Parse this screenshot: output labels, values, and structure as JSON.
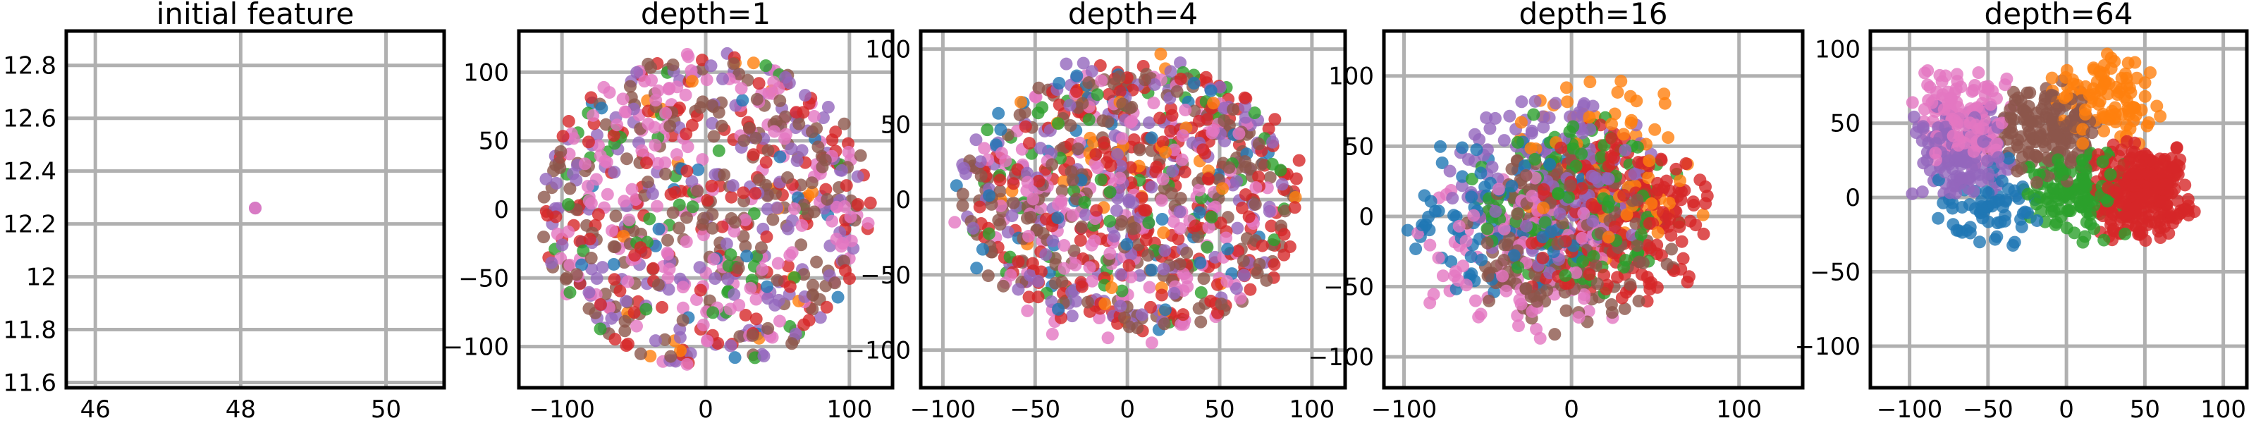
{
  "palette": [
    "#1f77b4",
    "#ff7f0e",
    "#2ca02c",
    "#d62728",
    "#9467bd",
    "#8c564b",
    "#e377c2"
  ],
  "chart_data": [
    {
      "type": "scatter",
      "title": "initial feature",
      "xlim": [
        45.6,
        50.8
      ],
      "ylim": [
        11.58,
        12.93
      ],
      "xticks": [
        46,
        48,
        50
      ],
      "yticks": [
        11.6,
        11.8,
        12.0,
        12.2,
        12.4,
        12.6,
        12.8
      ],
      "grid": true,
      "description": "all points collapse to a single location",
      "points": [
        {
          "x": 48.2,
          "y": 12.26,
          "class": 4
        },
        {
          "x": 48.2,
          "y": 12.26,
          "class": 6
        }
      ]
    },
    {
      "type": "scatter",
      "title": "depth=1",
      "xlim": [
        -130,
        130
      ],
      "ylim": [
        -130,
        130
      ],
      "xticks": [
        -100,
        0,
        100
      ],
      "yticks": [
        -100,
        -50,
        0,
        50,
        100
      ],
      "grid": true,
      "spread": 115,
      "mixing": 1.0,
      "weights": [
        0.03,
        0.03,
        0.06,
        0.17,
        0.2,
        0.28,
        0.23
      ],
      "count": 750
    },
    {
      "type": "scatter",
      "title": "depth=4",
      "xlim": [
        -112,
        118
      ],
      "ylim": [
        -125,
        112
      ],
      "xticks": [
        -100,
        -50,
        0,
        50,
        100
      ],
      "yticks": [
        -100,
        -50,
        0,
        50,
        100
      ],
      "grid": true,
      "spread": 100,
      "mixing": 0.9,
      "weights": [
        0.05,
        0.04,
        0.08,
        0.25,
        0.18,
        0.23,
        0.17
      ],
      "count": 950
    },
    {
      "type": "scatter",
      "title": "depth=16",
      "xlim": [
        -112,
        138
      ],
      "ylim": [
        -122,
        132
      ],
      "xticks": [
        -100,
        0,
        100
      ],
      "yticks": [
        -100,
        -50,
        0,
        50,
        100
      ],
      "grid": true,
      "spread": 105,
      "mixing": 0.55,
      "weights": [
        0.09,
        0.06,
        0.13,
        0.26,
        0.18,
        0.17,
        0.11
      ],
      "count": 1000
    },
    {
      "type": "scatter",
      "title": "depth=64",
      "xlim": [
        -125,
        115
      ],
      "ylim": [
        -128,
        112
      ],
      "xticks": [
        -100,
        -50,
        0,
        50,
        100
      ],
      "yticks": [
        -100,
        -50,
        0,
        50,
        100
      ],
      "grid": true,
      "spread": 105,
      "mixing": 0.15,
      "weights": [
        0.07,
        0.1,
        0.14,
        0.27,
        0.14,
        0.15,
        0.13
      ],
      "count": 1000
    }
  ]
}
